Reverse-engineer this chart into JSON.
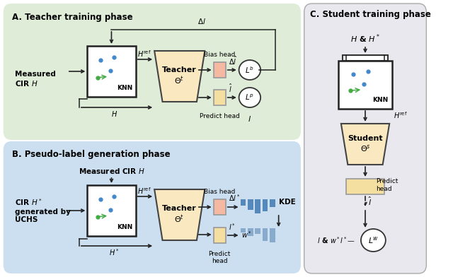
{
  "panel_A_bg": "#deecd8",
  "panel_B_bg": "#ccdff0",
  "panel_C_bg": "#e8e8ee",
  "knn_box_color": "#ffffff",
  "knn_border_color": "#222222",
  "teacher_trap_color": "#f9e8c0",
  "teacher_border_color": "#444444",
  "bias_head_color": "#f5b8a0",
  "predict_head_color": "#f5dfa0",
  "loss_circle_color": "#ffffff",
  "loss_circle_border": "#333333",
  "arrow_color": "#222222",
  "dot_blue": "#4488cc",
  "dot_green": "#44aa44",
  "bar_color_dark": "#5588bb",
  "bar_color_light": "#88aacc",
  "title_A": "A. Teacher training phase",
  "title_B": "B. Pseudo-label generation phase",
  "title_C": "C. Student training phase"
}
